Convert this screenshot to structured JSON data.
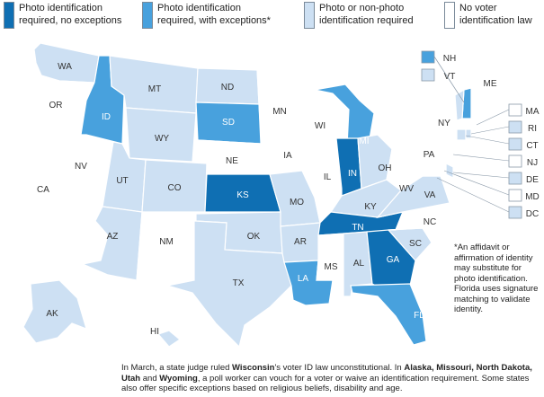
{
  "legend": [
    {
      "label": "Photo identification\nrequired, no exceptions",
      "color": "#0f6fb3"
    },
    {
      "label": "Photo identification\nrequired, with exceptions*",
      "color": "#48a1dd"
    },
    {
      "label": "Photo or non-photo\nidentification required",
      "color": "#cde0f3"
    },
    {
      "label": "No voter\nidentification law",
      "color": "#ffffff"
    }
  ],
  "categories": {
    "photo_no_exceptions": "#0f6fb3",
    "photo_with_exceptions": "#48a1dd",
    "photo_or_nonphoto": "#cde0f3",
    "none": "#ffffff"
  },
  "states": {
    "WA": "photo_or_nonphoto",
    "OR": "none",
    "CA": "none",
    "NV": "none",
    "ID": "photo_with_exceptions",
    "MT": "photo_or_nonphoto",
    "WY": "photo_or_nonphoto",
    "UT": "photo_or_nonphoto",
    "AZ": "photo_or_nonphoto",
    "CO": "photo_or_nonphoto",
    "NM": "none",
    "ND": "photo_or_nonphoto",
    "SD": "photo_with_exceptions",
    "NE": "none",
    "KS": "photo_no_exceptions",
    "OK": "photo_or_nonphoto",
    "TX": "photo_or_nonphoto",
    "MN": "none",
    "IA": "none",
    "MO": "photo_or_nonphoto",
    "AR": "photo_or_nonphoto",
    "LA": "photo_with_exceptions",
    "WI": "none",
    "IL": "none",
    "MI": "photo_with_exceptions",
    "IN": "photo_no_exceptions",
    "OH": "photo_or_nonphoto",
    "KY": "photo_or_nonphoto",
    "TN": "photo_no_exceptions",
    "MS": "none",
    "AL": "photo_or_nonphoto",
    "GA": "photo_no_exceptions",
    "FL": "photo_with_exceptions",
    "SC": "photo_or_nonphoto",
    "NC": "none",
    "VA": "photo_or_nonphoto",
    "WV": "none",
    "PA": "none",
    "NY": "none",
    "ME": "none",
    "AK": "photo_or_nonphoto",
    "HI": "photo_or_nonphoto",
    "NH": "photo_with_exceptions",
    "VT": "photo_or_nonphoto",
    "MA": "none",
    "RI": "photo_or_nonphoto",
    "CT": "photo_or_nonphoto",
    "NJ": "none",
    "DE": "photo_or_nonphoto",
    "MD": "none",
    "DC": "photo_or_nonphoto"
  },
  "labels": {
    "WA": "WA",
    "OR": "OR",
    "CA": "CA",
    "NV": "NV",
    "ID": "ID",
    "MT": "MT",
    "WY": "WY",
    "UT": "UT",
    "AZ": "AZ",
    "CO": "CO",
    "NM": "NM",
    "ND": "ND",
    "SD": "SD",
    "NE": "NE",
    "KS": "KS",
    "OK": "OK",
    "TX": "TX",
    "MN": "MN",
    "IA": "IA",
    "MO": "MO",
    "AR": "AR",
    "LA": "LA",
    "WI": "WI",
    "IL": "IL",
    "MI": "MI",
    "IN": "IN",
    "OH": "OH",
    "KY": "KY",
    "TN": "TN",
    "MS": "MS",
    "AL": "AL",
    "GA": "GA",
    "FL": "FL",
    "SC": "SC",
    "NC": "NC",
    "VA": "VA",
    "WV": "WV",
    "PA": "PA",
    "NY": "NY",
    "ME": "ME",
    "AK": "AK",
    "HI": "HI",
    "NH": "NH",
    "VT": "VT",
    "MA": "MA",
    "RI": "RI",
    "CT": "CT",
    "NJ": "NJ",
    "DE": "DE",
    "MD": "MD",
    "DC": "DC"
  },
  "note": "*An affidavit or affirmation of identity may substitute for photo identification. Florida uses signature matching to validate identity.",
  "footnote": {
    "p1": "In March, a state judge ruled ",
    "b1": "Wisconsin",
    "p2": "'s voter ID law unconstitutional. In ",
    "b2": "Alaska, Missouri, North Dakota, Utah",
    "p3": " and ",
    "b3": "Wyoming",
    "p4": ", a poll worker can vouch for a voter or waive an identification requirement. Some states also offer specific exceptions based on religious beliefs, disability and age."
  }
}
